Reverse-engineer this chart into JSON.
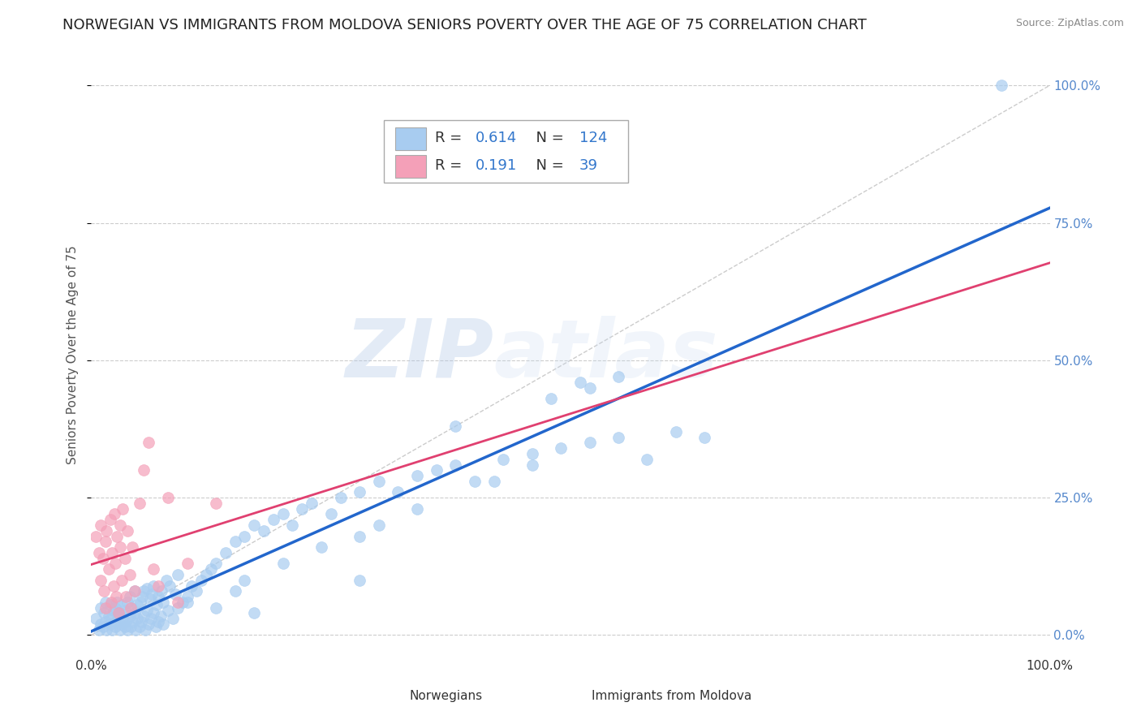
{
  "title": "NORWEGIAN VS IMMIGRANTS FROM MOLDOVA SENIORS POVERTY OVER THE AGE OF 75 CORRELATION CHART",
  "source": "Source: ZipAtlas.com",
  "ylabel": "Seniors Poverty Over the Age of 75",
  "xlim": [
    0,
    1.0
  ],
  "ylim": [
    -0.03,
    1.05
  ],
  "ytick_labels": [
    "0.0%",
    "25.0%",
    "50.0%",
    "75.0%",
    "100.0%"
  ],
  "ytick_values": [
    0.0,
    0.25,
    0.5,
    0.75,
    1.0
  ],
  "blue_R": 0.614,
  "blue_N": 124,
  "pink_R": 0.191,
  "pink_N": 39,
  "blue_color": "#a8ccf0",
  "pink_color": "#f4a0b8",
  "blue_line_color": "#2266cc",
  "pink_line_color": "#e04070",
  "ref_line_color": "#cccccc",
  "title_fontsize": 13,
  "label_fontsize": 11,
  "tick_fontsize": 11,
  "blue_scatter_x": [
    0.005,
    0.008,
    0.01,
    0.01,
    0.012,
    0.013,
    0.015,
    0.015,
    0.016,
    0.018,
    0.02,
    0.02,
    0.021,
    0.022,
    0.023,
    0.025,
    0.025,
    0.026,
    0.027,
    0.028,
    0.03,
    0.03,
    0.031,
    0.032,
    0.033,
    0.035,
    0.035,
    0.036,
    0.038,
    0.038,
    0.04,
    0.04,
    0.041,
    0.042,
    0.043,
    0.045,
    0.045,
    0.046,
    0.048,
    0.048,
    0.05,
    0.051,
    0.052,
    0.053,
    0.055,
    0.055,
    0.056,
    0.058,
    0.058,
    0.06,
    0.061,
    0.062,
    0.063,
    0.065,
    0.065,
    0.067,
    0.068,
    0.07,
    0.07,
    0.072,
    0.073,
    0.075,
    0.075,
    0.078,
    0.08,
    0.082,
    0.085,
    0.088,
    0.09,
    0.09,
    0.095,
    0.1,
    0.105,
    0.11,
    0.115,
    0.12,
    0.125,
    0.13,
    0.14,
    0.15,
    0.16,
    0.17,
    0.18,
    0.19,
    0.2,
    0.21,
    0.22,
    0.23,
    0.25,
    0.26,
    0.28,
    0.3,
    0.32,
    0.34,
    0.36,
    0.38,
    0.4,
    0.43,
    0.46,
    0.49,
    0.52,
    0.55,
    0.58,
    0.61,
    0.64,
    0.48,
    0.52,
    0.55,
    0.38,
    0.42,
    0.46,
    0.3,
    0.34,
    0.16,
    0.2,
    0.24,
    0.28,
    0.51,
    0.1,
    0.13,
    0.15,
    0.17,
    0.28,
    0.95
  ],
  "blue_scatter_y": [
    0.03,
    0.01,
    0.02,
    0.05,
    0.015,
    0.04,
    0.025,
    0.06,
    0.01,
    0.035,
    0.02,
    0.055,
    0.03,
    0.01,
    0.045,
    0.015,
    0.05,
    0.025,
    0.06,
    0.035,
    0.01,
    0.04,
    0.02,
    0.055,
    0.03,
    0.015,
    0.045,
    0.025,
    0.06,
    0.01,
    0.035,
    0.07,
    0.015,
    0.05,
    0.025,
    0.04,
    0.08,
    0.01,
    0.055,
    0.03,
    0.015,
    0.06,
    0.025,
    0.07,
    0.035,
    0.08,
    0.01,
    0.045,
    0.085,
    0.02,
    0.065,
    0.03,
    0.075,
    0.04,
    0.09,
    0.015,
    0.055,
    0.025,
    0.07,
    0.035,
    0.08,
    0.02,
    0.06,
    0.1,
    0.045,
    0.09,
    0.03,
    0.075,
    0.05,
    0.11,
    0.06,
    0.07,
    0.09,
    0.08,
    0.1,
    0.11,
    0.12,
    0.13,
    0.15,
    0.17,
    0.18,
    0.2,
    0.19,
    0.21,
    0.22,
    0.2,
    0.23,
    0.24,
    0.22,
    0.25,
    0.26,
    0.28,
    0.26,
    0.29,
    0.3,
    0.31,
    0.28,
    0.32,
    0.33,
    0.34,
    0.35,
    0.36,
    0.32,
    0.37,
    0.36,
    0.43,
    0.45,
    0.47,
    0.38,
    0.28,
    0.31,
    0.2,
    0.23,
    0.1,
    0.13,
    0.16,
    0.18,
    0.46,
    0.06,
    0.05,
    0.08,
    0.04,
    0.1,
    1.0
  ],
  "pink_scatter_x": [
    0.005,
    0.008,
    0.01,
    0.01,
    0.012,
    0.013,
    0.015,
    0.015,
    0.016,
    0.018,
    0.02,
    0.021,
    0.022,
    0.023,
    0.024,
    0.025,
    0.026,
    0.027,
    0.028,
    0.03,
    0.03,
    0.032,
    0.033,
    0.035,
    0.036,
    0.038,
    0.04,
    0.041,
    0.043,
    0.045,
    0.05,
    0.055,
    0.06,
    0.065,
    0.07,
    0.08,
    0.09,
    0.1,
    0.13
  ],
  "pink_scatter_y": [
    0.18,
    0.15,
    0.1,
    0.2,
    0.14,
    0.08,
    0.17,
    0.05,
    0.19,
    0.12,
    0.21,
    0.06,
    0.15,
    0.09,
    0.22,
    0.13,
    0.07,
    0.18,
    0.04,
    0.2,
    0.16,
    0.1,
    0.23,
    0.14,
    0.07,
    0.19,
    0.11,
    0.05,
    0.16,
    0.08,
    0.24,
    0.3,
    0.35,
    0.12,
    0.09,
    0.25,
    0.06,
    0.13,
    0.24
  ]
}
